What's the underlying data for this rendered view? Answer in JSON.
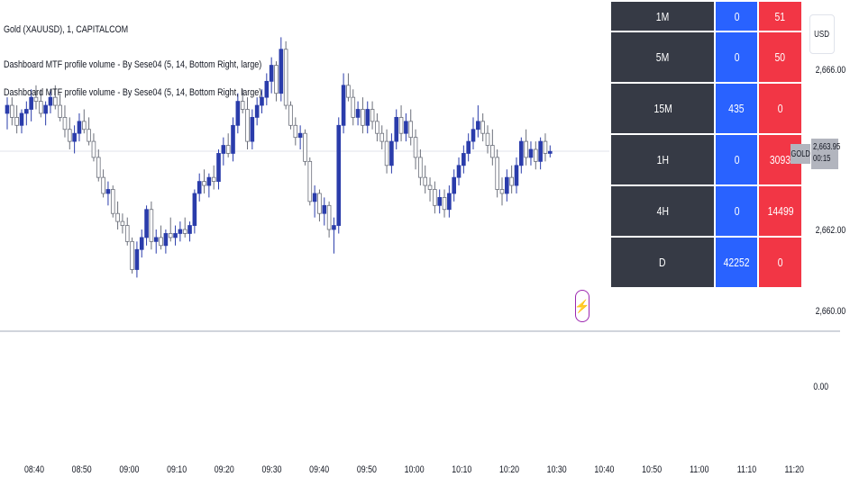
{
  "legend": {
    "title": "Gold (XAUUSD), 1, CAPITALCOM",
    "indicator_1": "Dashboard MTF profile volume - By Sese04 (5, 14, Bottom Right, large)",
    "indicator_2": "Dashboard MTF profile volume - By Sese04 (5, 14, Bottom Right, large)"
  },
  "currency_button": "USD",
  "symbol_tag": "GOLD",
  "current_price": {
    "price": "2,663.95",
    "countdown": "00:15"
  },
  "price_axis_labels": [
    "2,666.00",
    "2,662.00",
    "2,660.00",
    "0.00"
  ],
  "dashboard": {
    "rows": [
      {
        "tf": "1M",
        "buy": "0",
        "sell": "51"
      },
      {
        "tf": "5M",
        "buy": "0",
        "sell": "50"
      },
      {
        "tf": "15M",
        "buy": "435",
        "sell": "0"
      },
      {
        "tf": "1H",
        "buy": "0",
        "sell": "3093"
      },
      {
        "tf": "4H",
        "buy": "0",
        "sell": "14499"
      },
      {
        "tf": "D",
        "buy": "42252",
        "sell": "0"
      }
    ]
  },
  "colors": {
    "bull": "#2a3cab",
    "bear_fill": "#ffffff",
    "bear_border": "#6b6f7a",
    "buy": "#2962ff",
    "sell": "#f23645",
    "flash": "#9c27b0"
  },
  "flash_icon": "lightning-icon",
  "chart_data": {
    "type": "candlestick",
    "x_axis_ticks": [
      "08:40",
      "08:50",
      "09:00",
      "09:10",
      "09:20",
      "09:30",
      "09:40",
      "09:50",
      "10:00",
      "10:10",
      "10:20",
      "10:30",
      "10:40",
      "10:50",
      "11:00",
      "11:10",
      "11:20"
    ],
    "candles": [
      {
        "o": 2664.9,
        "h": 2665.3,
        "l": 2664.5,
        "c": 2665.1
      },
      {
        "o": 2665.1,
        "h": 2665.3,
        "l": 2664.6,
        "c": 2664.8
      },
      {
        "o": 2664.8,
        "h": 2665.1,
        "l": 2664.4,
        "c": 2664.6
      },
      {
        "o": 2664.6,
        "h": 2665.0,
        "l": 2664.4,
        "c": 2664.9
      },
      {
        "o": 2664.9,
        "h": 2665.2,
        "l": 2664.6,
        "c": 2665.0
      },
      {
        "o": 2665.0,
        "h": 2665.5,
        "l": 2664.7,
        "c": 2665.3
      },
      {
        "o": 2665.3,
        "h": 2665.6,
        "l": 2665.0,
        "c": 2665.2
      },
      {
        "o": 2665.2,
        "h": 2665.5,
        "l": 2664.8,
        "c": 2664.9
      },
      {
        "o": 2664.9,
        "h": 2665.2,
        "l": 2664.6,
        "c": 2665.1
      },
      {
        "o": 2665.1,
        "h": 2665.5,
        "l": 2664.9,
        "c": 2665.3
      },
      {
        "o": 2665.3,
        "h": 2665.6,
        "l": 2665.0,
        "c": 2665.1
      },
      {
        "o": 2665.1,
        "h": 2665.4,
        "l": 2664.7,
        "c": 2664.8
      },
      {
        "o": 2664.8,
        "h": 2665.1,
        "l": 2664.3,
        "c": 2664.5
      },
      {
        "o": 2664.5,
        "h": 2664.8,
        "l": 2664.0,
        "c": 2664.2
      },
      {
        "o": 2664.2,
        "h": 2664.6,
        "l": 2663.9,
        "c": 2664.4
      },
      {
        "o": 2664.4,
        "h": 2664.9,
        "l": 2664.2,
        "c": 2664.7
      },
      {
        "o": 2664.7,
        "h": 2665.0,
        "l": 2664.4,
        "c": 2664.5
      },
      {
        "o": 2664.5,
        "h": 2664.8,
        "l": 2664.1,
        "c": 2664.2
      },
      {
        "o": 2664.2,
        "h": 2664.4,
        "l": 2663.7,
        "c": 2663.8
      },
      {
        "o": 2663.8,
        "h": 2664.0,
        "l": 2663.2,
        "c": 2663.3
      },
      {
        "o": 2663.3,
        "h": 2663.5,
        "l": 2662.8,
        "c": 2662.9
      },
      {
        "o": 2662.9,
        "h": 2663.2,
        "l": 2662.6,
        "c": 2663.0
      },
      {
        "o": 2663.0,
        "h": 2663.1,
        "l": 2662.3,
        "c": 2662.4
      },
      {
        "o": 2662.4,
        "h": 2662.7,
        "l": 2662.0,
        "c": 2662.2
      },
      {
        "o": 2662.2,
        "h": 2662.4,
        "l": 2661.9,
        "c": 2662.1
      },
      {
        "o": 2662.1,
        "h": 2662.3,
        "l": 2661.6,
        "c": 2661.7
      },
      {
        "o": 2661.7,
        "h": 2661.8,
        "l": 2660.9,
        "c": 2661.0
      },
      {
        "o": 2661.0,
        "h": 2661.7,
        "l": 2660.8,
        "c": 2661.5
      },
      {
        "o": 2661.5,
        "h": 2662.0,
        "l": 2661.3,
        "c": 2661.8
      },
      {
        "o": 2661.8,
        "h": 2662.6,
        "l": 2661.6,
        "c": 2662.5
      },
      {
        "o": 2662.5,
        "h": 2662.7,
        "l": 2661.5,
        "c": 2661.7
      },
      {
        "o": 2661.7,
        "h": 2662.0,
        "l": 2661.4,
        "c": 2661.8
      },
      {
        "o": 2661.8,
        "h": 2662.1,
        "l": 2661.5,
        "c": 2661.6
      },
      {
        "o": 2661.6,
        "h": 2662.0,
        "l": 2661.4,
        "c": 2661.9
      },
      {
        "o": 2661.9,
        "h": 2662.3,
        "l": 2661.7,
        "c": 2661.8
      },
      {
        "o": 2661.8,
        "h": 2662.1,
        "l": 2661.6,
        "c": 2661.9
      },
      {
        "o": 2661.9,
        "h": 2662.2,
        "l": 2661.7,
        "c": 2662.0
      },
      {
        "o": 2662.0,
        "h": 2662.3,
        "l": 2661.8,
        "c": 2661.9
      },
      {
        "o": 2661.9,
        "h": 2662.2,
        "l": 2661.7,
        "c": 2662.1
      },
      {
        "o": 2662.1,
        "h": 2663.0,
        "l": 2661.9,
        "c": 2662.9
      },
      {
        "o": 2662.9,
        "h": 2663.4,
        "l": 2662.7,
        "c": 2663.2
      },
      {
        "o": 2663.2,
        "h": 2663.5,
        "l": 2662.9,
        "c": 2663.1
      },
      {
        "o": 2663.1,
        "h": 2663.4,
        "l": 2662.8,
        "c": 2663.3
      },
      {
        "o": 2663.3,
        "h": 2663.6,
        "l": 2663.0,
        "c": 2663.2
      },
      {
        "o": 2663.2,
        "h": 2664.0,
        "l": 2663.0,
        "c": 2663.9
      },
      {
        "o": 2663.9,
        "h": 2664.3,
        "l": 2663.6,
        "c": 2664.1
      },
      {
        "o": 2664.1,
        "h": 2664.4,
        "l": 2663.8,
        "c": 2663.9
      },
      {
        "o": 2663.9,
        "h": 2664.8,
        "l": 2663.7,
        "c": 2664.6
      },
      {
        "o": 2664.6,
        "h": 2665.4,
        "l": 2664.4,
        "c": 2665.2
      },
      {
        "o": 2665.2,
        "h": 2665.5,
        "l": 2664.9,
        "c": 2665.0
      },
      {
        "o": 2665.0,
        "h": 2665.3,
        "l": 2664.0,
        "c": 2664.2
      },
      {
        "o": 2664.2,
        "h": 2665.0,
        "l": 2664.0,
        "c": 2664.8
      },
      {
        "o": 2664.8,
        "h": 2665.3,
        "l": 2664.6,
        "c": 2665.1
      },
      {
        "o": 2665.1,
        "h": 2665.5,
        "l": 2664.9,
        "c": 2665.3
      },
      {
        "o": 2665.3,
        "h": 2665.9,
        "l": 2665.1,
        "c": 2665.7
      },
      {
        "o": 2665.7,
        "h": 2666.3,
        "l": 2665.4,
        "c": 2666.1
      },
      {
        "o": 2666.1,
        "h": 2666.2,
        "l": 2665.2,
        "c": 2665.4
      },
      {
        "o": 2665.4,
        "h": 2666.8,
        "l": 2665.2,
        "c": 2666.5
      },
      {
        "o": 2666.5,
        "h": 2666.7,
        "l": 2665.0,
        "c": 2665.1
      },
      {
        "o": 2665.1,
        "h": 2665.2,
        "l": 2664.5,
        "c": 2664.6
      },
      {
        "o": 2664.6,
        "h": 2664.8,
        "l": 2664.1,
        "c": 2664.3
      },
      {
        "o": 2664.3,
        "h": 2664.6,
        "l": 2664.0,
        "c": 2664.4
      },
      {
        "o": 2664.4,
        "h": 2664.5,
        "l": 2663.6,
        "c": 2663.7
      },
      {
        "o": 2663.7,
        "h": 2663.8,
        "l": 2662.6,
        "c": 2662.7
      },
      {
        "o": 2662.7,
        "h": 2663.1,
        "l": 2662.3,
        "c": 2662.9
      },
      {
        "o": 2662.9,
        "h": 2663.0,
        "l": 2662.2,
        "c": 2662.4
      },
      {
        "o": 2662.4,
        "h": 2662.8,
        "l": 2662.1,
        "c": 2662.6
      },
      {
        "o": 2662.6,
        "h": 2662.7,
        "l": 2661.8,
        "c": 2662.0
      },
      {
        "o": 2662.0,
        "h": 2662.3,
        "l": 2661.4,
        "c": 2662.1
      },
      {
        "o": 2662.1,
        "h": 2664.8,
        "l": 2661.9,
        "c": 2664.6
      },
      {
        "o": 2664.6,
        "h": 2665.9,
        "l": 2664.4,
        "c": 2665.6
      },
      {
        "o": 2665.6,
        "h": 2665.9,
        "l": 2665.2,
        "c": 2665.3
      },
      {
        "o": 2665.3,
        "h": 2665.5,
        "l": 2664.6,
        "c": 2664.8
      },
      {
        "o": 2664.8,
        "h": 2665.2,
        "l": 2664.6,
        "c": 2665.0
      },
      {
        "o": 2665.0,
        "h": 2665.3,
        "l": 2664.4,
        "c": 2664.6
      },
      {
        "o": 2664.6,
        "h": 2665.2,
        "l": 2664.4,
        "c": 2665.0
      },
      {
        "o": 2665.0,
        "h": 2665.2,
        "l": 2664.5,
        "c": 2664.7
      },
      {
        "o": 2664.7,
        "h": 2664.9,
        "l": 2664.2,
        "c": 2664.4
      },
      {
        "o": 2664.4,
        "h": 2664.6,
        "l": 2664.0,
        "c": 2664.2
      },
      {
        "o": 2664.2,
        "h": 2664.5,
        "l": 2663.4,
        "c": 2663.6
      },
      {
        "o": 2663.6,
        "h": 2664.4,
        "l": 2663.4,
        "c": 2664.2
      },
      {
        "o": 2664.2,
        "h": 2665.0,
        "l": 2664.0,
        "c": 2664.8
      },
      {
        "o": 2664.8,
        "h": 2665.1,
        "l": 2664.2,
        "c": 2664.4
      },
      {
        "o": 2664.4,
        "h": 2664.9,
        "l": 2664.2,
        "c": 2664.7
      },
      {
        "o": 2664.7,
        "h": 2665.0,
        "l": 2664.1,
        "c": 2664.3
      },
      {
        "o": 2664.3,
        "h": 2664.5,
        "l": 2663.5,
        "c": 2663.8
      },
      {
        "o": 2663.8,
        "h": 2664.0,
        "l": 2663.1,
        "c": 2663.3
      },
      {
        "o": 2663.3,
        "h": 2663.6,
        "l": 2662.9,
        "c": 2663.1
      },
      {
        "o": 2663.1,
        "h": 2663.3,
        "l": 2662.7,
        "c": 2663.0
      },
      {
        "o": 2663.0,
        "h": 2663.2,
        "l": 2662.4,
        "c": 2662.6
      },
      {
        "o": 2662.6,
        "h": 2663.0,
        "l": 2662.4,
        "c": 2662.8
      },
      {
        "o": 2662.8,
        "h": 2663.0,
        "l": 2662.3,
        "c": 2662.5
      },
      {
        "o": 2662.5,
        "h": 2663.1,
        "l": 2662.3,
        "c": 2662.9
      },
      {
        "o": 2662.9,
        "h": 2663.5,
        "l": 2662.7,
        "c": 2663.3
      },
      {
        "o": 2663.3,
        "h": 2663.8,
        "l": 2663.1,
        "c": 2663.6
      },
      {
        "o": 2663.6,
        "h": 2664.1,
        "l": 2663.4,
        "c": 2663.9
      },
      {
        "o": 2663.9,
        "h": 2664.4,
        "l": 2663.7,
        "c": 2664.2
      },
      {
        "o": 2664.2,
        "h": 2664.8,
        "l": 2664.0,
        "c": 2664.5
      },
      {
        "o": 2664.5,
        "h": 2665.1,
        "l": 2664.3,
        "c": 2664.7
      },
      {
        "o": 2664.7,
        "h": 2664.9,
        "l": 2664.2,
        "c": 2664.4
      },
      {
        "o": 2664.4,
        "h": 2664.6,
        "l": 2663.9,
        "c": 2664.1
      },
      {
        "o": 2664.1,
        "h": 2664.5,
        "l": 2663.6,
        "c": 2663.8
      },
      {
        "o": 2663.8,
        "h": 2664.0,
        "l": 2662.8,
        "c": 2663.0
      },
      {
        "o": 2663.0,
        "h": 2663.3,
        "l": 2662.6,
        "c": 2662.9
      },
      {
        "o": 2662.9,
        "h": 2663.5,
        "l": 2662.7,
        "c": 2663.3
      },
      {
        "o": 2663.3,
        "h": 2663.6,
        "l": 2662.9,
        "c": 2663.1
      },
      {
        "o": 2663.1,
        "h": 2663.8,
        "l": 2662.9,
        "c": 2663.6
      },
      {
        "o": 2663.6,
        "h": 2664.3,
        "l": 2663.4,
        "c": 2664.2
      },
      {
        "o": 2664.2,
        "h": 2664.5,
        "l": 2663.6,
        "c": 2663.8
      },
      {
        "o": 2663.8,
        "h": 2664.2,
        "l": 2663.6,
        "c": 2664.0
      },
      {
        "o": 2664.0,
        "h": 2664.2,
        "l": 2663.5,
        "c": 2663.7
      },
      {
        "o": 2663.7,
        "h": 2664.3,
        "l": 2663.5,
        "c": 2664.2
      },
      {
        "o": 2664.2,
        "h": 2664.4,
        "l": 2663.7,
        "c": 2663.9
      },
      {
        "o": 2663.9,
        "h": 2664.1,
        "l": 2663.8,
        "c": 2663.95
      }
    ]
  }
}
